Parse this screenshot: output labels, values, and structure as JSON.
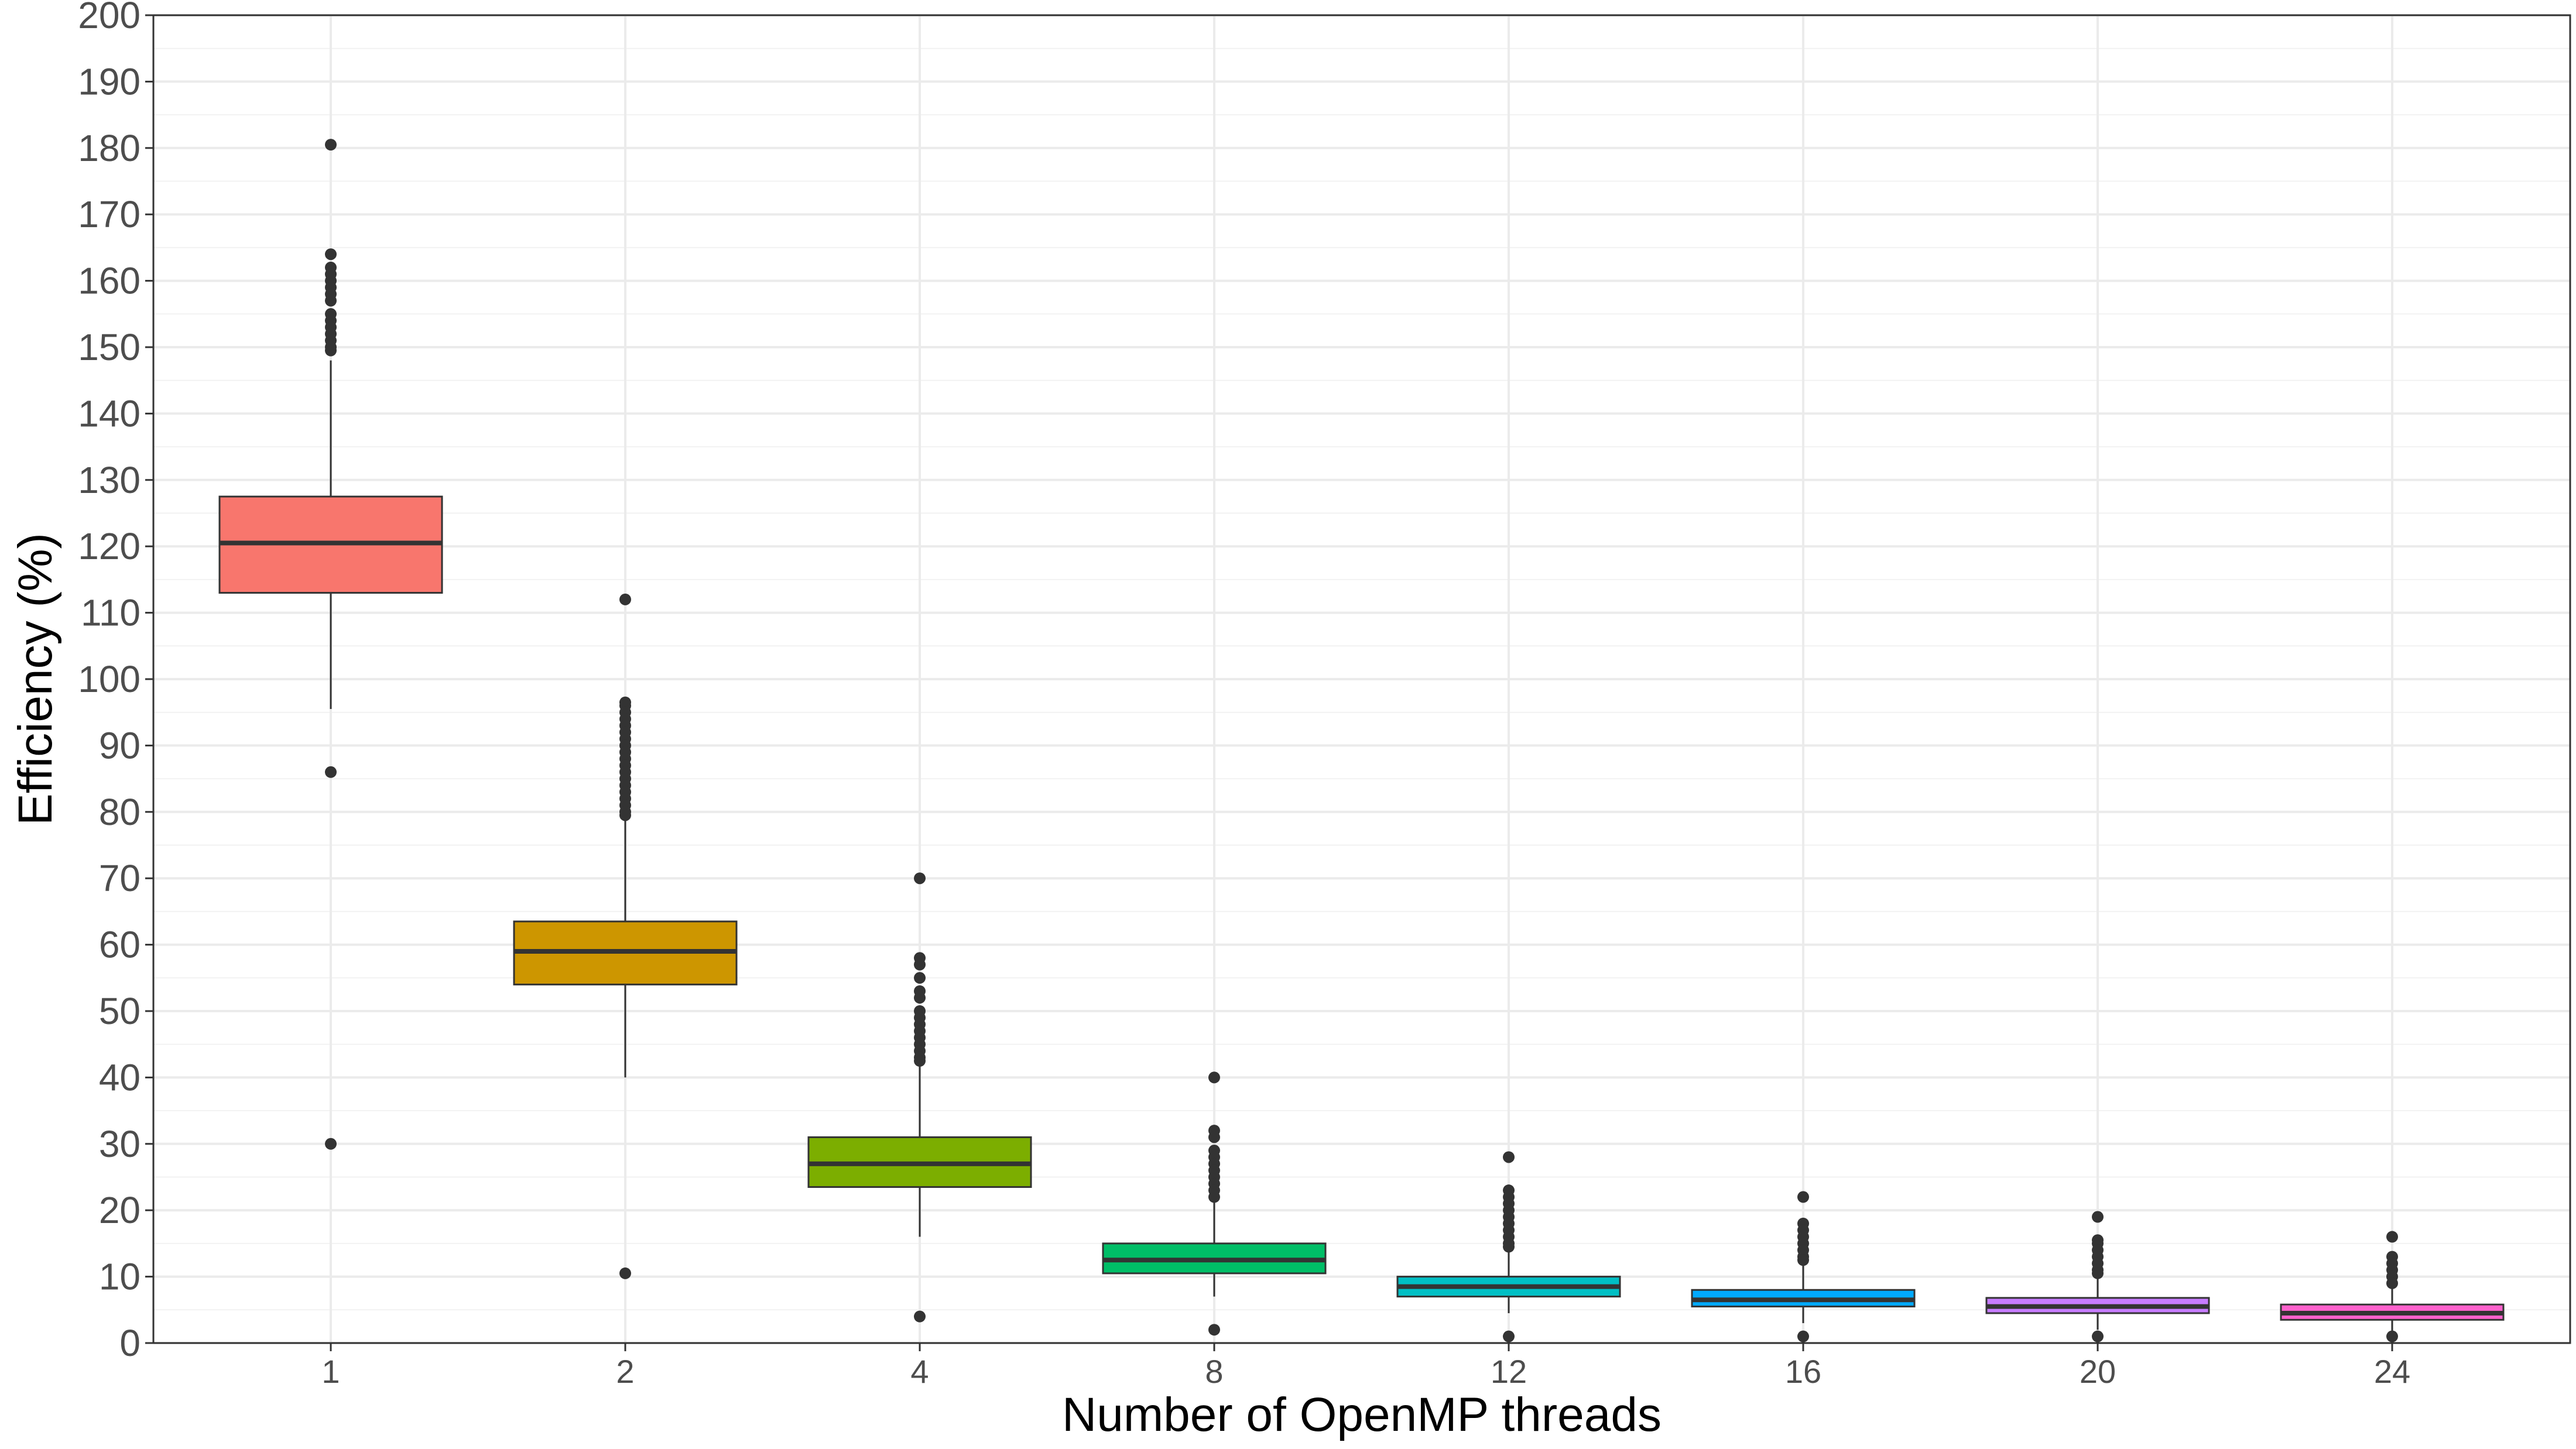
{
  "chart_data": {
    "type": "boxplot",
    "title": "",
    "xlabel": "Number of OpenMP threads",
    "ylabel": "Efficiency (%)",
    "ylim": [
      0,
      200
    ],
    "y_ticks": [
      0,
      10,
      20,
      30,
      40,
      50,
      60,
      70,
      80,
      90,
      100,
      110,
      120,
      130,
      140,
      150,
      160,
      170,
      180,
      190,
      200
    ],
    "grid": true,
    "legend": "none",
    "categories": [
      "1",
      "2",
      "4",
      "8",
      "12",
      "16",
      "20",
      "24"
    ],
    "boxes": [
      {
        "category": "1",
        "color": "#F8766D",
        "whisker_low": 95.5,
        "q1": 113,
        "median": 120.5,
        "q3": 127.5,
        "whisker_high": 148,
        "outliers": [
          180.5,
          164,
          162,
          161,
          160,
          159,
          158,
          157,
          155,
          154,
          153,
          152,
          151,
          150,
          149.5,
          86,
          30
        ]
      },
      {
        "category": "2",
        "color": "#CD9600",
        "whisker_low": 40,
        "q1": 54,
        "median": 59,
        "q3": 63.5,
        "whisker_high": 79,
        "outliers": [
          112,
          96.5,
          96,
          95,
          94,
          93,
          92,
          91,
          90,
          89,
          88,
          87,
          86,
          85,
          84,
          83,
          82,
          81,
          80,
          79.5,
          10.5
        ]
      },
      {
        "category": "4",
        "color": "#7CAE00",
        "whisker_low": 16,
        "q1": 23.5,
        "median": 27,
        "q3": 31,
        "whisker_high": 42,
        "outliers": [
          70,
          58,
          57,
          55,
          53,
          52,
          50,
          49,
          48,
          47,
          46,
          45,
          44,
          43,
          42.5,
          4
        ]
      },
      {
        "category": "8",
        "color": "#00BE67",
        "whisker_low": 7,
        "q1": 10.5,
        "median": 12.5,
        "q3": 15,
        "whisker_high": 21.5,
        "outliers": [
          40,
          32,
          31,
          29,
          28,
          27,
          26,
          25,
          24,
          23,
          22,
          2
        ]
      },
      {
        "category": "12",
        "color": "#00BFC4",
        "whisker_low": 4.5,
        "q1": 7,
        "median": 8.5,
        "q3": 10,
        "whisker_high": 14,
        "outliers": [
          28,
          23,
          22,
          21,
          20,
          19,
          18,
          17,
          16,
          15,
          14.5,
          1
        ]
      },
      {
        "category": "16",
        "color": "#00A9FF",
        "whisker_low": 3,
        "q1": 5.5,
        "median": 6.5,
        "q3": 8,
        "whisker_high": 12,
        "outliers": [
          22,
          18,
          17,
          16,
          15,
          14,
          13,
          12.5,
          1
        ]
      },
      {
        "category": "20",
        "color": "#C77CFF",
        "whisker_low": 2,
        "q1": 4.5,
        "median": 5.5,
        "q3": 6.8,
        "whisker_high": 10,
        "outliers": [
          19,
          15.5,
          15,
          14,
          13,
          12,
          11,
          10.5,
          1
        ]
      },
      {
        "category": "24",
        "color": "#FF61CC",
        "whisker_low": 1.5,
        "q1": 3.5,
        "median": 4.5,
        "q3": 5.8,
        "whisker_high": 8.5,
        "outliers": [
          16,
          13,
          12,
          11,
          10,
          9,
          1
        ]
      }
    ]
  }
}
